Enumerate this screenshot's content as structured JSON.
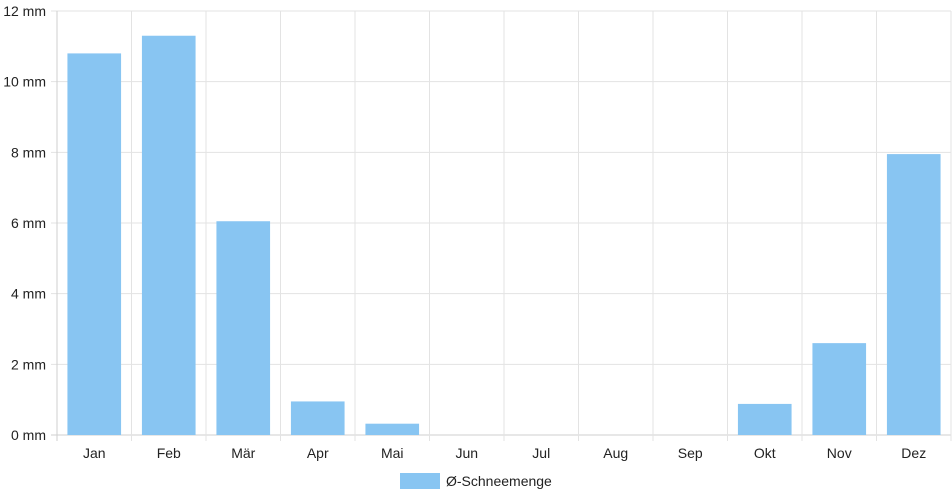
{
  "chart_data": {
    "type": "bar",
    "categories": [
      "Jan",
      "Feb",
      "Mär",
      "Apr",
      "Mai",
      "Jun",
      "Jul",
      "Aug",
      "Sep",
      "Okt",
      "Nov",
      "Dez"
    ],
    "series": [
      {
        "name": "Ø-Schneemenge",
        "values": [
          10.8,
          11.3,
          6.05,
          0.95,
          0.32,
          0,
          0,
          0,
          0,
          0.88,
          2.6,
          7.95
        ]
      }
    ],
    "y_ticks": [
      "0 mm",
      "2 mm",
      "4 mm",
      "6 mm",
      "8 mm",
      "10 mm",
      "12 mm"
    ],
    "ylim": [
      0,
      12
    ],
    "grid": true,
    "legend_position": "bottom-center",
    "bar_color": "#88c5f2"
  }
}
